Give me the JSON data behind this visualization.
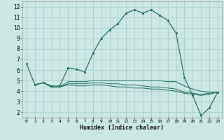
{
  "xlabel": "Humidex (Indice chaleur)",
  "bg_color": "#cce8e4",
  "grid_color": "#aacfcb",
  "line_color": "#1a6b5a",
  "xlim": [
    -0.5,
    23.5
  ],
  "ylim": [
    1.5,
    12.5
  ],
  "yticks": [
    2,
    3,
    4,
    5,
    6,
    7,
    8,
    9,
    10,
    11,
    12
  ],
  "xticks": [
    0,
    1,
    2,
    3,
    4,
    5,
    6,
    7,
    8,
    9,
    10,
    11,
    12,
    13,
    14,
    15,
    16,
    17,
    18,
    19,
    20,
    21,
    22,
    23
  ],
  "line1_x": [
    0,
    1,
    2,
    3,
    4,
    5,
    6,
    7,
    8,
    9,
    10,
    11,
    12,
    13,
    14,
    15,
    16,
    17,
    18,
    19,
    20,
    21,
    22,
    23
  ],
  "line1_y": [
    6.6,
    4.6,
    4.8,
    4.5,
    4.5,
    6.2,
    6.1,
    5.8,
    7.6,
    9.0,
    9.8,
    10.4,
    11.4,
    11.7,
    11.4,
    11.7,
    11.2,
    10.7,
    9.5,
    5.3,
    3.6,
    1.7,
    2.4,
    3.9
  ],
  "line2_x": [
    1,
    2,
    3,
    4,
    5,
    6,
    7,
    8,
    9,
    10,
    11,
    12,
    13,
    14,
    15,
    16,
    17,
    18,
    19,
    20,
    21,
    22,
    23
  ],
  "line2_y": [
    4.6,
    4.8,
    4.4,
    4.4,
    4.9,
    4.9,
    4.9,
    5.0,
    5.0,
    5.0,
    5.0,
    5.0,
    5.0,
    5.0,
    5.0,
    5.0,
    4.9,
    4.9,
    4.5,
    4.2,
    4.0,
    3.9,
    3.9
  ],
  "line3_x": [
    1,
    2,
    3,
    4,
    5,
    6,
    7,
    8,
    9,
    10,
    11,
    12,
    13,
    14,
    15,
    16,
    17,
    18,
    19,
    20,
    21,
    22,
    23
  ],
  "line3_y": [
    4.6,
    4.8,
    4.4,
    4.4,
    4.6,
    4.5,
    4.5,
    4.6,
    4.6,
    4.5,
    4.4,
    4.4,
    4.3,
    4.3,
    4.2,
    4.2,
    4.1,
    4.0,
    3.8,
    3.7,
    3.6,
    3.7,
    3.9
  ],
  "line4_x": [
    1,
    2,
    3,
    4,
    5,
    6,
    7,
    8,
    9,
    10,
    11,
    12,
    13,
    14,
    15,
    16,
    17,
    18,
    19,
    20,
    21,
    22,
    23
  ],
  "line4_y": [
    4.6,
    4.8,
    4.4,
    4.4,
    4.7,
    4.7,
    4.7,
    4.8,
    4.8,
    4.7,
    4.7,
    4.6,
    4.6,
    4.5,
    4.4,
    4.4,
    4.3,
    4.2,
    3.9,
    3.8,
    3.7,
    3.8,
    3.9
  ]
}
